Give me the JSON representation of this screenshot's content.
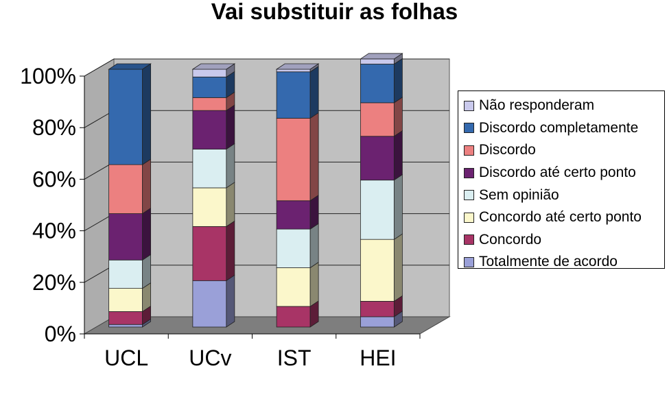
{
  "chart_data": {
    "type": "bar",
    "stacked": true,
    "three_d": true,
    "title": "Vai substituir as folhas",
    "xlabel": "",
    "ylabel": "",
    "ylim": [
      0,
      100
    ],
    "y_ticks": [
      "0%",
      "20%",
      "40%",
      "60%",
      "80%",
      "100%"
    ],
    "grid": true,
    "legend_position": "right",
    "categories": [
      "UCL",
      "UCv",
      "IST",
      "HEI"
    ],
    "series": [
      {
        "name": "Totalmente de acordo",
        "color": "#9aa0d8",
        "values": [
          1,
          18,
          0,
          4
        ]
      },
      {
        "name": "Concordo",
        "color": "#a83466",
        "values": [
          5,
          21,
          8,
          6
        ]
      },
      {
        "name": "Concordo até certo ponto",
        "color": "#fbf7cb",
        "values": [
          9,
          15,
          15,
          24
        ]
      },
      {
        "name": "Sem opinião",
        "color": "#daeef1",
        "values": [
          11,
          15,
          15,
          23
        ]
      },
      {
        "name": "Discordo até certo ponto",
        "color": "#6b2270",
        "values": [
          18,
          15,
          11,
          17
        ]
      },
      {
        "name": "Discordo",
        "color": "#ec8080",
        "values": [
          19,
          5,
          32,
          13
        ]
      },
      {
        "name": "Discordo completamente",
        "color": "#3469ae",
        "values": [
          37,
          8,
          18,
          15
        ]
      },
      {
        "name": "Não responderam",
        "color": "#c9c9ec",
        "values": [
          0,
          3,
          1,
          2
        ]
      }
    ]
  }
}
